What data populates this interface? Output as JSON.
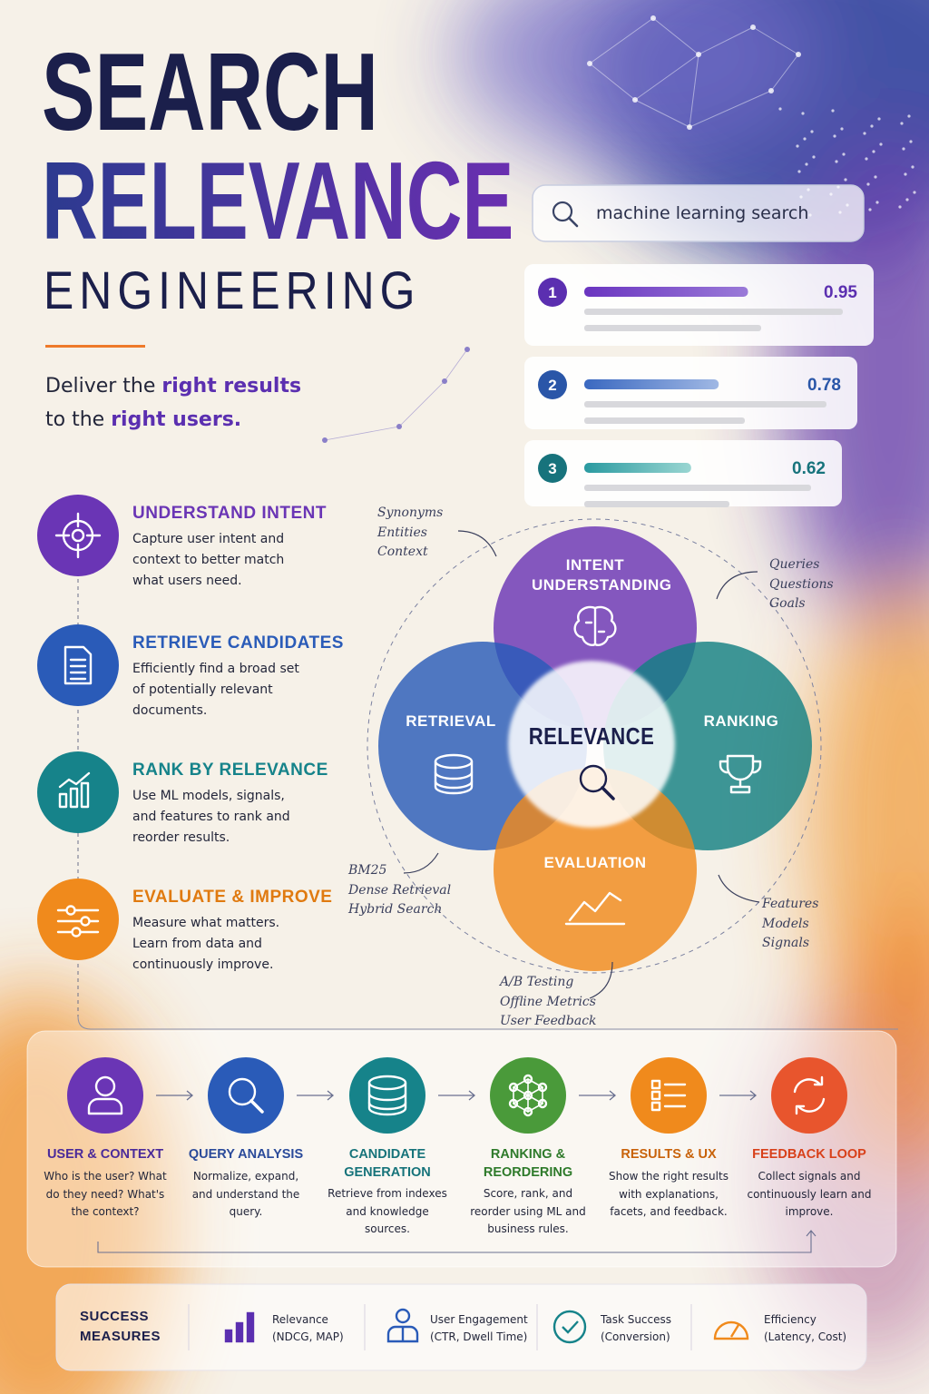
{
  "header": {
    "title_line1": "SEARCH",
    "title_line2": "RELEVANCE",
    "title_line3": "ENGINEERING",
    "tagline_line1_prefix": "Deliver the",
    "tagline_line1_highlight": "right results",
    "tagline_line2_prefix": "to the",
    "tagline_line2_highlight": "right users."
  },
  "search": {
    "query": "machine learning search",
    "results": [
      {
        "rank": 1,
        "score": 0.95
      },
      {
        "rank": 2,
        "score": 0.78
      },
      {
        "rank": 3,
        "score": 0.62
      }
    ]
  },
  "pillars": [
    {
      "title": "UNDERSTAND INTENT",
      "description": "Capture user intent and context to better match what users need."
    },
    {
      "title": "RETRIEVE CANDIDATES",
      "description": "Efficiently find a broad set of potentially relevant documents."
    },
    {
      "title": "RANK BY RELEVANCE",
      "description": "Use ML models, signals, and features to rank and reorder results."
    },
    {
      "title": "EVALUATE & IMPROVE",
      "description": "Measure what matters. Learn from data and continuously improve."
    }
  ],
  "venn": {
    "center": "RELEVANCE",
    "circles": [
      {
        "label": "INTENT UNDERSTANDING"
      },
      {
        "label": "RETRIEVAL"
      },
      {
        "label": "RANKING"
      },
      {
        "label": "EVALUATION"
      }
    ],
    "annotations": [
      {
        "lines": [
          "Synonyms",
          "Entities",
          "Context"
        ]
      },
      {
        "lines": [
          "Queries",
          "Questions",
          "Goals"
        ]
      },
      {
        "lines": [
          "BM25",
          "Dense Retrieval",
          "Hybrid Search"
        ]
      },
      {
        "lines": [
          "Features",
          "Models",
          "Signals"
        ]
      },
      {
        "lines": [
          "A/B Testing",
          "Offline Metrics",
          "User Feedback"
        ]
      }
    ]
  },
  "pipeline": {
    "steps": [
      {
        "title": "USER & CONTEXT",
        "description": "Who is the user? What do they need? What's the context?"
      },
      {
        "title": "QUERY ANALYSIS",
        "description": "Normalize, expand, and understand the query."
      },
      {
        "title": "CANDIDATE GENERATION",
        "description": "Retrieve from indexes and knowledge sources."
      },
      {
        "title": "RANKING & REORDERING",
        "description": "Score, rank, and reorder using ML and business rules."
      },
      {
        "title": "RESULTS & UX",
        "description": "Show the right results with explanations, facets, and feedback."
      },
      {
        "title": "FEEDBACK LOOP",
        "description": "Collect signals and continuously learn and improve."
      }
    ]
  },
  "success": {
    "label": "SUCCESS MEASURES",
    "measures": [
      {
        "name": "Relevance",
        "detail": "(NDCG, MAP)"
      },
      {
        "name": "User Engagement",
        "detail": "(CTR, Dwell Time)"
      },
      {
        "name": "Task Success",
        "detail": "(Conversion)"
      },
      {
        "name": "Efficiency",
        "detail": "(Latency, Cost)"
      }
    ]
  }
}
